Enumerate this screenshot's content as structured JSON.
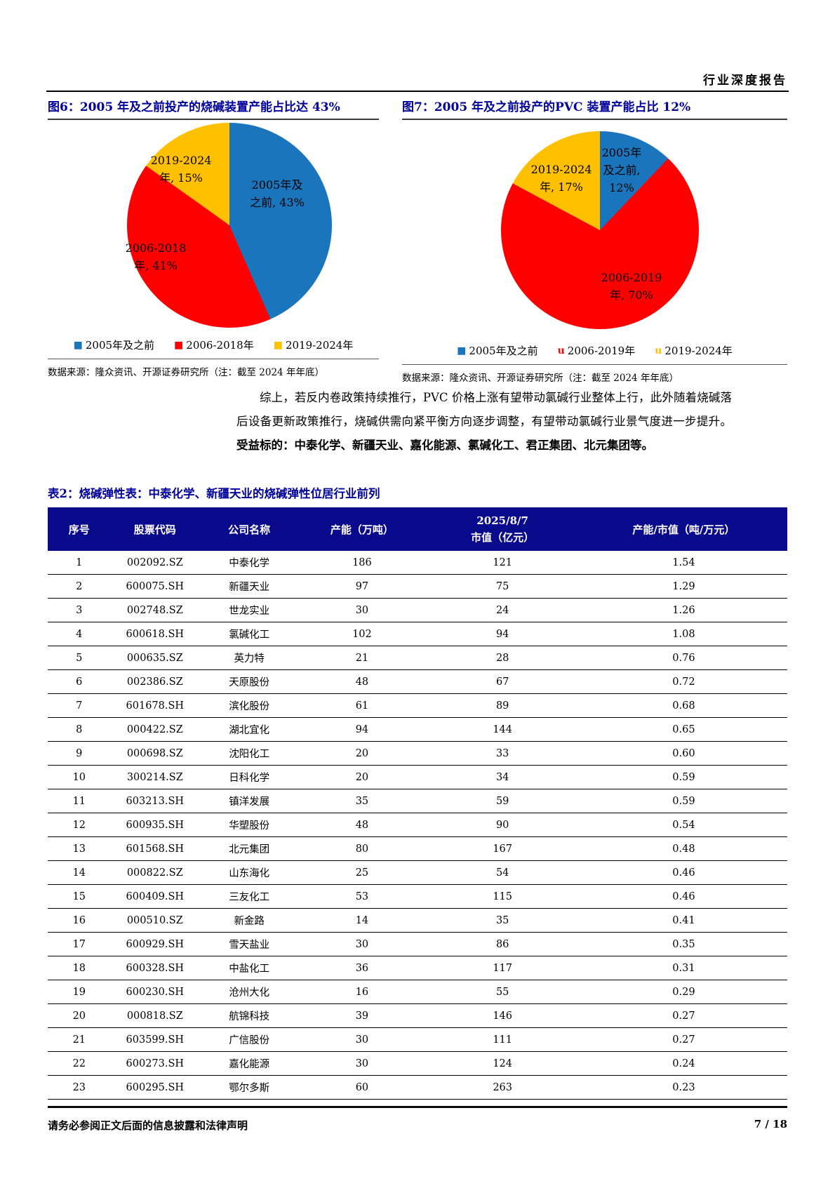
{
  "page": {
    "header_title": "行业深度报告",
    "footer_disclaimer": "请务必参阅正文后面的信息披露和法律声明",
    "footer_page": "7 / 18"
  },
  "colors": {
    "pie_blue": "#1B75BC",
    "pie_red": "#FF0000",
    "pie_yellow": "#FFC000",
    "caption_blue": "#00009B",
    "table_header_bg": "#0A0A8C"
  },
  "figure6": {
    "caption": "图6：2005 年及之前投产的烧碱装置产能占比达 43%",
    "slice_labels": {
      "blue_l1": "2005年及",
      "blue_l2": "之前, 43%",
      "red_l1": "2006-2018",
      "red_l2": "年, 41%",
      "yellow_l1": "2019-2024",
      "yellow_l2": "年, 15%"
    },
    "legend": {
      "item1": {
        "marker": "■",
        "color": "#1B75BC",
        "label": "2005年及之前"
      },
      "item2": {
        "marker": "■",
        "color": "#FF0000",
        "label": "2006-2018年"
      },
      "item3": {
        "marker": "■",
        "color": "#FFC000",
        "label": "2019-2024年"
      }
    },
    "source": "数据来源：隆众资讯、开源证券研究所（注：截至 2024 年年底）"
  },
  "figure7": {
    "caption": "图7：2005 年及之前投产的PVC 装置产能占比 12%",
    "slice_labels": {
      "blue_l1": "2005年",
      "blue_l2": "及之前,",
      "blue_l3": "12%",
      "red_l1": "2006-2019",
      "red_l2": "年, 70%",
      "yellow_l1": "2019-2024",
      "yellow_l2": "年, 17%"
    },
    "legend": {
      "item1": {
        "marker": "■",
        "color": "#1B75BC",
        "label": "2005年及之前"
      },
      "item2": {
        "marker": "u",
        "color": "#FF0000",
        "label": "2006-2019年"
      },
      "item3": {
        "marker": "u",
        "color": "#FFC000",
        "label": "2019-2024年"
      }
    },
    "source": "数据来源：隆众资讯、开源证券研究所（注：截至 2024 年年底）"
  },
  "chart_data": [
    {
      "type": "pie",
      "title": "图6：2005 年及之前投产的烧碱装置产能占比达 43%",
      "labels": [
        "2005年及之前",
        "2006-2018年",
        "2019-2024年"
      ],
      "values": [
        43,
        41,
        15
      ],
      "unit": "%",
      "colors": [
        "#1B75BC",
        "#FF0000",
        "#FFC000"
      ],
      "start_angle": "top",
      "direction": "clockwise",
      "legend_position": "bottom",
      "source": "数据来源：隆众资讯、开源证券研究所（注：截至 2024 年年底）"
    },
    {
      "type": "pie",
      "title": "图7：2005 年及之前投产的PVC 装置产能占比 12%",
      "labels": [
        "2005年及之前",
        "2006-2019年",
        "2019-2024年"
      ],
      "values": [
        12,
        70,
        17
      ],
      "unit": "%",
      "colors": [
        "#1B75BC",
        "#FF0000",
        "#FFC000"
      ],
      "start_angle": "top",
      "direction": "clockwise",
      "legend_position": "bottom",
      "source": "数据来源：隆众资讯、开源证券研究所（注：截至 2024 年年底）"
    }
  ],
  "paragraph": {
    "normal": "综上，若反内卷政策持续推行，PVC 价格上涨有望带动氯碱行业整体上行，此外随着烧碱落后设备更新政策推行，烧碱供需向紧平衡方向逐步调整，有望带动氯碱行业景气度进一步提升。",
    "bold": "受益标的：中泰化学、新疆天业、嘉化能源、氯碱化工、君正集团、北元集团等。"
  },
  "table": {
    "title": "表2：烧碱弹性表：中泰化学、新疆天业的烧碱弹性位居行业前列",
    "headers": [
      {
        "line1": "序号"
      },
      {
        "line1": "股票代码"
      },
      {
        "line1": "公司名称"
      },
      {
        "line1": "产能（万吨）"
      },
      {
        "line1": "2025/8/7",
        "line2": "市值（亿元）"
      },
      {
        "line1": "产能/市值（吨/万元）"
      }
    ],
    "rows": [
      [
        "1",
        "002092.SZ",
        "中泰化学",
        "186",
        "121",
        "1.54"
      ],
      [
        "2",
        "600075.SH",
        "新疆天业",
        "97",
        "75",
        "1.29"
      ],
      [
        "3",
        "002748.SZ",
        "世龙实业",
        "30",
        "24",
        "1.26"
      ],
      [
        "4",
        "600618.SH",
        "氯碱化工",
        "102",
        "94",
        "1.08"
      ],
      [
        "5",
        "000635.SZ",
        "英力特",
        "21",
        "28",
        "0.76"
      ],
      [
        "6",
        "002386.SZ",
        "天原股份",
        "48",
        "67",
        "0.72"
      ],
      [
        "7",
        "601678.SH",
        "滨化股份",
        "61",
        "89",
        "0.68"
      ],
      [
        "8",
        "000422.SZ",
        "湖北宜化",
        "94",
        "144",
        "0.65"
      ],
      [
        "9",
        "000698.SZ",
        "沈阳化工",
        "20",
        "33",
        "0.60"
      ],
      [
        "10",
        "300214.SZ",
        "日科化学",
        "20",
        "34",
        "0.59"
      ],
      [
        "11",
        "603213.SH",
        "镇洋发展",
        "35",
        "59",
        "0.59"
      ],
      [
        "12",
        "600935.SH",
        "华塑股份",
        "48",
        "90",
        "0.54"
      ],
      [
        "13",
        "601568.SH",
        "北元集团",
        "80",
        "167",
        "0.48"
      ],
      [
        "14",
        "000822.SZ",
        "山东海化",
        "25",
        "54",
        "0.46"
      ],
      [
        "15",
        "600409.SH",
        "三友化工",
        "53",
        "115",
        "0.46"
      ],
      [
        "16",
        "000510.SZ",
        "新金路",
        "14",
        "35",
        "0.41"
      ],
      [
        "17",
        "600929.SH",
        "雪天盐业",
        "30",
        "86",
        "0.35"
      ],
      [
        "18",
        "600328.SH",
        "中盐化工",
        "36",
        "117",
        "0.31"
      ],
      [
        "19",
        "600230.SH",
        "沧州大化",
        "16",
        "55",
        "0.29"
      ],
      [
        "20",
        "000818.SZ",
        "航锦科技",
        "39",
        "146",
        "0.27"
      ],
      [
        "21",
        "603599.SH",
        "广信股份",
        "30",
        "111",
        "0.27"
      ],
      [
        "22",
        "600273.SH",
        "嘉化能源",
        "30",
        "124",
        "0.24"
      ],
      [
        "23",
        "600295.SH",
        "鄂尔多斯",
        "60",
        "263",
        "0.23"
      ]
    ]
  }
}
